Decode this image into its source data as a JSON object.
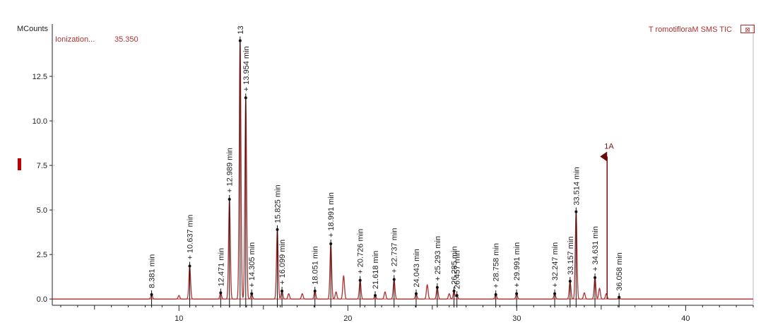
{
  "header": {
    "y_unit": "MCounts",
    "ion_label": "Ionization...",
    "ion_value": "35.350",
    "trace_name": "T romotifloraM SMS TIC",
    "close_glyph": "⊠"
  },
  "colors": {
    "trace": "#b03030",
    "axis": "#222222",
    "marker": "#c00000"
  },
  "chart_data": {
    "type": "line",
    "title": "",
    "xlabel": "",
    "ylabel": "MCounts",
    "xlim": [
      2.5,
      44
    ],
    "ylim": [
      -0.35,
      15.2
    ],
    "x_ticks": [
      10,
      20,
      30,
      40
    ],
    "y_ticks": [
      0.0,
      2.5,
      5.0,
      7.5,
      10.0,
      12.5
    ],
    "y_tick_labels": [
      "0.0",
      "2.5",
      "5.0",
      "7.5",
      "10.0",
      "12.5"
    ],
    "grid": false,
    "series": [
      {
        "peaks": [
          {
            "rt": 8.381,
            "h": 0.25
          },
          {
            "rt": 10.0,
            "h": 0.2
          },
          {
            "rt": 10.637,
            "h": 1.85
          },
          {
            "rt": 12.471,
            "h": 0.35
          },
          {
            "rt": 12.989,
            "h": 5.6
          },
          {
            "rt": 13.62,
            "h": 14.5
          },
          {
            "rt": 13.954,
            "h": 11.3
          },
          {
            "rt": 14.305,
            "h": 0.3
          },
          {
            "rt": 15.825,
            "h": 3.9
          },
          {
            "rt": 16.099,
            "h": 0.45
          },
          {
            "rt": 16.5,
            "h": 0.3
          },
          {
            "rt": 17.3,
            "h": 0.3
          },
          {
            "rt": 18.051,
            "h": 0.45
          },
          {
            "rt": 18.991,
            "h": 3.1
          },
          {
            "rt": 19.3,
            "h": 0.4
          },
          {
            "rt": 19.75,
            "h": 1.3
          },
          {
            "rt": 20.726,
            "h": 1.05
          },
          {
            "rt": 21.618,
            "h": 0.2
          },
          {
            "rt": 22.2,
            "h": 0.4
          },
          {
            "rt": 22.737,
            "h": 1.1
          },
          {
            "rt": 24.043,
            "h": 0.3
          },
          {
            "rt": 24.7,
            "h": 0.8
          },
          {
            "rt": 25.293,
            "h": 0.65
          },
          {
            "rt": 26.0,
            "h": 0.3
          },
          {
            "rt": 26.285,
            "h": 0.45
          },
          {
            "rt": 26.457,
            "h": 0.2
          },
          {
            "rt": 28.758,
            "h": 0.25
          },
          {
            "rt": 29.991,
            "h": 0.3
          },
          {
            "rt": 32.247,
            "h": 0.3
          },
          {
            "rt": 33.157,
            "h": 1.0
          },
          {
            "rt": 33.514,
            "h": 4.9
          },
          {
            "rt": 34.0,
            "h": 0.35
          },
          {
            "rt": 34.631,
            "h": 1.2
          },
          {
            "rt": 34.9,
            "h": 0.6
          },
          {
            "rt": 35.3,
            "h": 0.3
          },
          {
            "rt": 36.058,
            "h": 0.1
          }
        ]
      }
    ],
    "annotations": [
      {
        "text": "8.381 min",
        "rt": 8.381
      },
      {
        "text": "+ 10.637 min",
        "rt": 10.637
      },
      {
        "text": "12.471 min",
        "rt": 12.471
      },
      {
        "text": "+ 12.989 min",
        "rt": 12.989
      },
      {
        "text": "13",
        "rt": 13.62
      },
      {
        "text": "+ 13.954 min",
        "rt": 13.954
      },
      {
        "text": "+ 14.305 min",
        "rt": 14.305
      },
      {
        "text": "15.825 min",
        "rt": 15.825
      },
      {
        "text": "+ 16.099 min",
        "rt": 16.099
      },
      {
        "text": "18.051 min",
        "rt": 18.051
      },
      {
        "text": "+ 18.991 min",
        "rt": 18.991
      },
      {
        "text": "+ 20.726 min",
        "rt": 20.726
      },
      {
        "text": "21.618 min",
        "rt": 21.618
      },
      {
        "text": "+ 22.737 min",
        "rt": 22.737
      },
      {
        "text": "24.043 min",
        "rt": 24.043
      },
      {
        "text": "+ 25.293 min",
        "rt": 25.293
      },
      {
        "text": "26.285 min",
        "rt": 26.285
      },
      {
        "text": "26.457 min",
        "rt": 26.457
      },
      {
        "text": "+ 28.758 min",
        "rt": 28.758
      },
      {
        "text": "+ 29.991 min",
        "rt": 29.991
      },
      {
        "text": "+ 32.247 min",
        "rt": 32.247
      },
      {
        "text": "33.157 min",
        "rt": 33.157
      },
      {
        "text": "33.514 min",
        "rt": 33.514
      },
      {
        "text": "+ 34.631 min",
        "rt": 34.631
      },
      {
        "text": "36.058 min",
        "rt": 36.058
      }
    ],
    "scan_marker": {
      "label": "1A",
      "rt": 35.35,
      "value": 8.0
    }
  }
}
